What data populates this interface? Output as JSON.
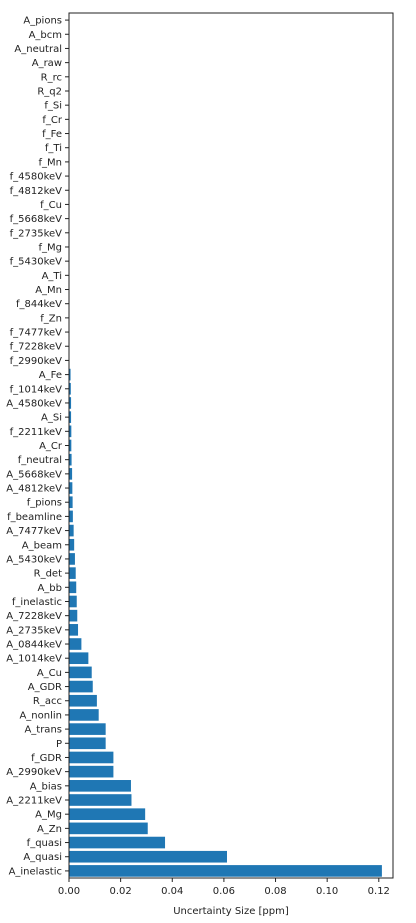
{
  "chart_data": {
    "type": "bar",
    "orientation": "horizontal",
    "xlabel": "Uncertainty Size [ppm]",
    "ylabel": "",
    "xlim": [
      0,
      0.1255
    ],
    "xticks": [
      "0.00",
      "0.02",
      "0.04",
      "0.06",
      "0.08",
      "0.10",
      "0.12"
    ],
    "grid": false,
    "bar_color": "#1f77b4",
    "categories": [
      "A_pions",
      "A_bcm",
      "A_neutral",
      "A_raw",
      "R_rc",
      "R_q2",
      "f_Si",
      "f_Cr",
      "f_Fe",
      "f_Ti",
      "f_Mn",
      "f_4580keV",
      "f_4812keV",
      "f_Cu",
      "f_5668keV",
      "f_2735keV",
      "f_Mg",
      "f_5430keV",
      "A_Ti",
      "A_Mn",
      "f_844keV",
      "f_Zn",
      "f_7477keV",
      "f_7228keV",
      "f_2990keV",
      "A_Fe",
      "f_1014keV",
      "A_4580keV",
      "A_Si",
      "f_2211keV",
      "A_Cr",
      "f_neutral",
      "A_5668keV",
      "A_4812keV",
      "f_pions",
      "f_beamline",
      "A_7477keV",
      "A_beam",
      "A_5430keV",
      "R_det",
      "A_bb",
      "f_inelastic",
      "A_7228keV",
      "A_2735keV",
      "A_0844keV",
      "A_1014keV",
      "A_Cu",
      "A_GDR",
      "R_acc",
      "A_nonlin",
      "A_trans",
      "P",
      "f_GDR",
      "A_2990keV",
      "A_bias",
      "A_2211keV",
      "A_Mg",
      "A_Zn",
      "f_quasi",
      "A_quasi",
      "A_inelastic"
    ],
    "values": [
      0.0,
      0.0,
      0.0,
      0.0,
      0.0,
      0.0,
      0.0,
      0.0,
      0.0,
      0.0,
      0.0,
      0.0,
      0.0,
      0.0,
      0.0,
      0.0,
      0.0,
      0.0,
      0.0,
      0.0,
      0.0,
      0.0,
      0.0,
      0.0,
      0.0,
      0.0006,
      0.0007,
      0.0008,
      0.0008,
      0.0009,
      0.0009,
      0.001,
      0.0012,
      0.0013,
      0.0014,
      0.0015,
      0.0018,
      0.002,
      0.0023,
      0.0026,
      0.0028,
      0.003,
      0.0032,
      0.0035,
      0.0048,
      0.0075,
      0.0088,
      0.0092,
      0.0108,
      0.0115,
      0.0142,
      0.0142,
      0.0172,
      0.0172,
      0.024,
      0.0242,
      0.0295,
      0.0305,
      0.0372,
      0.0612,
      0.1212
    ]
  }
}
